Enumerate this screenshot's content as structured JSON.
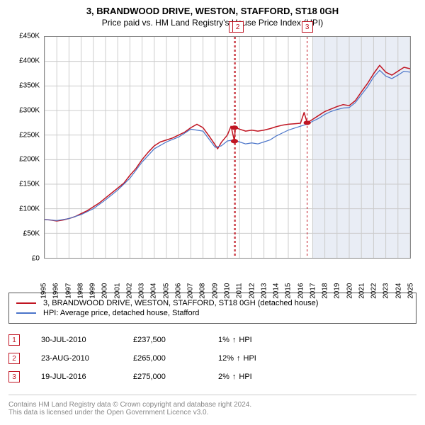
{
  "title": "3, BRANDWOOD DRIVE, WESTON, STAFFORD, ST18 0GH",
  "subtitle": "Price paid vs. HM Land Registry's House Price Index (HPI)",
  "chart": {
    "type": "line",
    "background_color": "#ffffff",
    "grid_color": "#cccccc",
    "border_color": "#888888",
    "future_band_color": "#e9edf5",
    "ylim": [
      0,
      450000
    ],
    "ytick_step": 50000,
    "yticks": [
      "£0",
      "£50K",
      "£100K",
      "£150K",
      "£200K",
      "£250K",
      "£300K",
      "£350K",
      "£400K",
      "£450K"
    ],
    "xlim": [
      1995,
      2025
    ],
    "xticks": [
      "1995",
      "1996",
      "1997",
      "1998",
      "1999",
      "2000",
      "2001",
      "2002",
      "2003",
      "2004",
      "2005",
      "2006",
      "2007",
      "2008",
      "2009",
      "2010",
      "2011",
      "2012",
      "2013",
      "2014",
      "2015",
      "2016",
      "2017",
      "2018",
      "2019",
      "2020",
      "2021",
      "2022",
      "2023",
      "2024",
      "2025"
    ],
    "future_start_year": 2017,
    "series": [
      {
        "name": "property",
        "color": "#c01522",
        "line_width": 1.5,
        "data": [
          [
            1995,
            78000
          ],
          [
            1995.5,
            77000
          ],
          [
            1996,
            75000
          ],
          [
            1996.5,
            77000
          ],
          [
            1997,
            80000
          ],
          [
            1997.5,
            84000
          ],
          [
            1998,
            90000
          ],
          [
            1998.5,
            96000
          ],
          [
            1999,
            104000
          ],
          [
            1999.5,
            112000
          ],
          [
            2000,
            122000
          ],
          [
            2000.5,
            132000
          ],
          [
            2001,
            142000
          ],
          [
            2001.5,
            152000
          ],
          [
            2002,
            168000
          ],
          [
            2002.5,
            182000
          ],
          [
            2003,
            200000
          ],
          [
            2003.5,
            215000
          ],
          [
            2004,
            228000
          ],
          [
            2004.5,
            236000
          ],
          [
            2005,
            240000
          ],
          [
            2005.5,
            244000
          ],
          [
            2006,
            250000
          ],
          [
            2006.5,
            256000
          ],
          [
            2007,
            265000
          ],
          [
            2007.5,
            272000
          ],
          [
            2008,
            265000
          ],
          [
            2008.5,
            248000
          ],
          [
            2009,
            230000
          ],
          [
            2009.2,
            222000
          ],
          [
            2009.5,
            235000
          ],
          [
            2010,
            250000
          ],
          [
            2010.3,
            268000
          ],
          [
            2010.58,
            237500
          ],
          [
            2010.65,
            265000
          ],
          [
            2011,
            262000
          ],
          [
            2011.5,
            258000
          ],
          [
            2012,
            260000
          ],
          [
            2012.5,
            258000
          ],
          [
            2013,
            260000
          ],
          [
            2013.5,
            263000
          ],
          [
            2014,
            267000
          ],
          [
            2014.5,
            270000
          ],
          [
            2015,
            272000
          ],
          [
            2015.5,
            273000
          ],
          [
            2016,
            274000
          ],
          [
            2016.3,
            296000
          ],
          [
            2016.55,
            275000
          ],
          [
            2017,
            282000
          ],
          [
            2017.5,
            290000
          ],
          [
            2018,
            298000
          ],
          [
            2018.5,
            303000
          ],
          [
            2019,
            308000
          ],
          [
            2019.5,
            312000
          ],
          [
            2020,
            310000
          ],
          [
            2020.5,
            320000
          ],
          [
            2021,
            338000
          ],
          [
            2021.5,
            355000
          ],
          [
            2022,
            375000
          ],
          [
            2022.5,
            392000
          ],
          [
            2023,
            378000
          ],
          [
            2023.5,
            372000
          ],
          [
            2024,
            380000
          ],
          [
            2024.5,
            388000
          ],
          [
            2025,
            385000
          ]
        ]
      },
      {
        "name": "hpi",
        "color": "#4a74c9",
        "line_width": 1.2,
        "data": [
          [
            1995,
            78000
          ],
          [
            1996,
            76000
          ],
          [
            1997,
            80000
          ],
          [
            1998,
            88000
          ],
          [
            1999,
            100000
          ],
          [
            2000,
            118000
          ],
          [
            2001,
            138000
          ],
          [
            2002,
            162000
          ],
          [
            2003,
            195000
          ],
          [
            2004,
            222000
          ],
          [
            2005,
            236000
          ],
          [
            2006,
            246000
          ],
          [
            2007,
            262000
          ],
          [
            2008,
            258000
          ],
          [
            2009,
            225000
          ],
          [
            2009.5,
            228000
          ],
          [
            2010,
            238000
          ],
          [
            2010.5,
            240000
          ],
          [
            2011,
            236000
          ],
          [
            2011.5,
            232000
          ],
          [
            2012,
            234000
          ],
          [
            2012.5,
            232000
          ],
          [
            2013,
            236000
          ],
          [
            2013.5,
            240000
          ],
          [
            2014,
            248000
          ],
          [
            2014.5,
            254000
          ],
          [
            2015,
            260000
          ],
          [
            2015.5,
            264000
          ],
          [
            2016,
            268000
          ],
          [
            2016.5,
            272000
          ],
          [
            2017,
            278000
          ],
          [
            2017.5,
            284000
          ],
          [
            2018,
            292000
          ],
          [
            2018.5,
            298000
          ],
          [
            2019,
            302000
          ],
          [
            2019.5,
            305000
          ],
          [
            2020,
            306000
          ],
          [
            2020.5,
            316000
          ],
          [
            2021,
            332000
          ],
          [
            2021.5,
            348000
          ],
          [
            2022,
            368000
          ],
          [
            2022.5,
            382000
          ],
          [
            2023,
            370000
          ],
          [
            2023.5,
            365000
          ],
          [
            2024,
            372000
          ],
          [
            2024.5,
            380000
          ],
          [
            2025,
            378000
          ]
        ]
      }
    ],
    "sale_markers": [
      {
        "n": 1,
        "year": 2010.58,
        "price": 237500,
        "dot_price_lo": 237500,
        "dot_price_hi": 265000,
        "color": "#c01522",
        "label_year": 2010.58
      },
      {
        "n": 2,
        "year": 2010.65,
        "price": 265000,
        "color": "#c01522",
        "label_year": 2010.85
      },
      {
        "n": 3,
        "year": 2016.55,
        "price": 275000,
        "color": "#c01522",
        "label_year": 2016.55
      }
    ]
  },
  "legend": [
    {
      "color": "#c01522",
      "label": "3, BRANDWOOD DRIVE, WESTON, STAFFORD, ST18 0GH (detached house)"
    },
    {
      "color": "#4a74c9",
      "label": "HPI: Average price, detached house, Stafford"
    }
  ],
  "sales": [
    {
      "n": "1",
      "date": "30-JUL-2010",
      "price": "£237,500",
      "pct": "1%",
      "arrow": "↑",
      "vs": "HPI"
    },
    {
      "n": "2",
      "date": "23-AUG-2010",
      "price": "£265,000",
      "pct": "12%",
      "arrow": "↑",
      "vs": "HPI"
    },
    {
      "n": "3",
      "date": "19-JUL-2016",
      "price": "£275,000",
      "pct": "2%",
      "arrow": "↑",
      "vs": "HPI"
    }
  ],
  "sale_badge_color": "#c01522",
  "footer": {
    "line1": "Contains HM Land Registry data © Crown copyright and database right 2024.",
    "line2": "This data is licensed under the Open Government Licence v3.0."
  }
}
